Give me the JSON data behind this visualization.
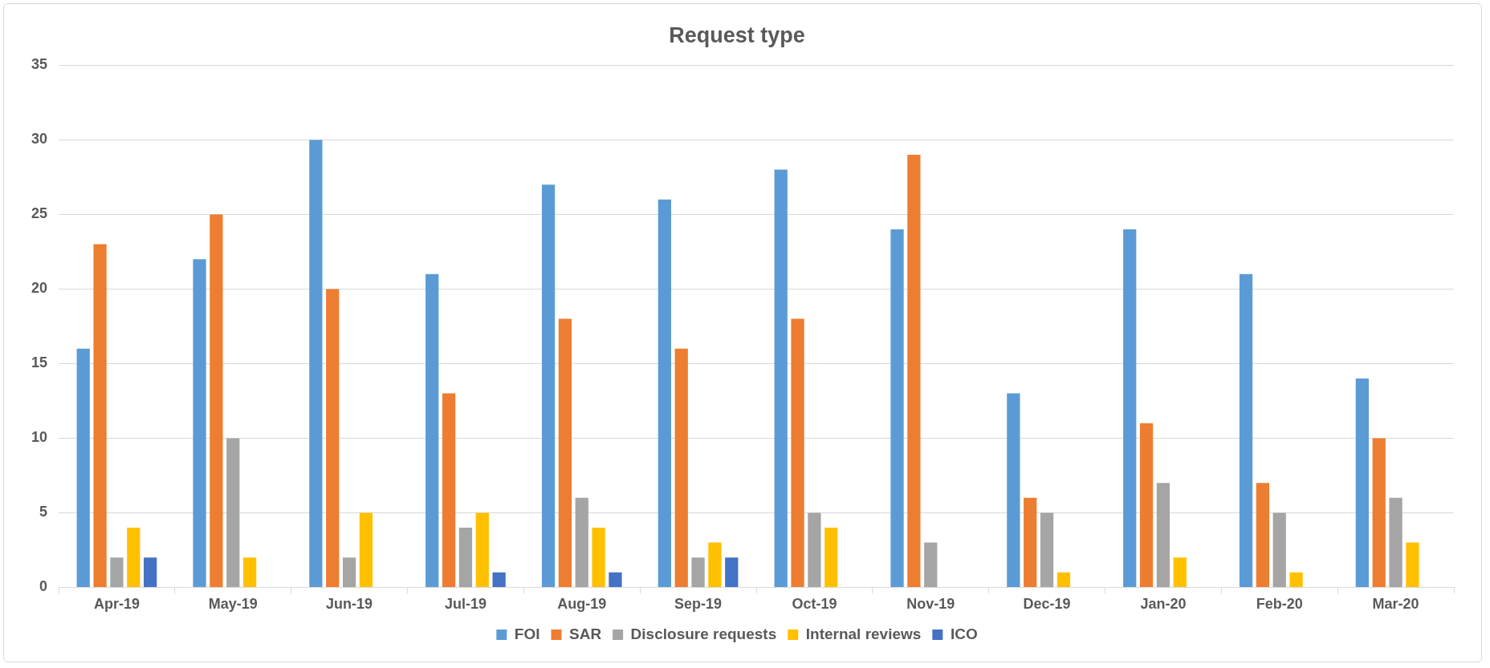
{
  "chart_data": {
    "type": "bar",
    "title": "Request type",
    "categories": [
      "Apr-19",
      "May-19",
      "Jun-19",
      "Jul-19",
      "Aug-19",
      "Sep-19",
      "Oct-19",
      "Nov-19",
      "Dec-19",
      "Jan-20",
      "Feb-20",
      "Mar-20"
    ],
    "series": [
      {
        "name": "FOI",
        "color": "#5b9bd5",
        "values": [
          16,
          22,
          30,
          21,
          27,
          26,
          28,
          24,
          13,
          24,
          21,
          14
        ]
      },
      {
        "name": "SAR",
        "color": "#ed7d31",
        "values": [
          23,
          25,
          20,
          13,
          18,
          16,
          18,
          29,
          6,
          11,
          7,
          10
        ]
      },
      {
        "name": "Disclosure requests",
        "color": "#a5a5a5",
        "values": [
          2,
          10,
          2,
          4,
          6,
          2,
          5,
          3,
          5,
          7,
          5,
          6
        ]
      },
      {
        "name": "Internal reviews",
        "color": "#ffc000",
        "values": [
          4,
          2,
          5,
          5,
          4,
          3,
          4,
          0,
          1,
          2,
          1,
          3
        ]
      },
      {
        "name": "ICO",
        "color": "#4472c4",
        "values": [
          2,
          0,
          0,
          1,
          1,
          2,
          0,
          0,
          0,
          0,
          0,
          0
        ]
      }
    ],
    "ylim": [
      0,
      35
    ],
    "yticks": [
      0,
      5,
      10,
      15,
      20,
      25,
      30,
      35
    ],
    "grid": "y",
    "legend": "bottom"
  }
}
